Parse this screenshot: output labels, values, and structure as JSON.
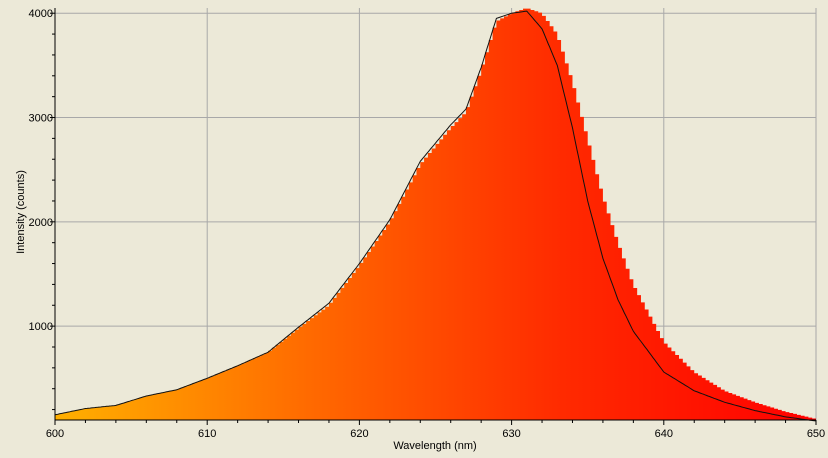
{
  "chart_data": {
    "type": "area",
    "xlabel": "Wavelength (nm)",
    "ylabel": "Intensity (counts)",
    "xlim": [
      600,
      650
    ],
    "ylim": [
      100,
      4050
    ],
    "x_ticks": [
      600,
      610,
      620,
      630,
      640,
      650
    ],
    "y_ticks": [
      1000,
      2000,
      3000,
      4000
    ],
    "grid": true,
    "fill_gradient": [
      "#ffb000",
      "#ff6a00",
      "#ff2a00",
      "#ff0000"
    ],
    "bar_series": {
      "x": [
        600,
        602,
        604,
        606,
        608,
        610,
        612,
        614,
        616,
        618,
        620,
        622,
        624,
        626,
        627,
        628,
        629,
        630,
        631,
        632,
        633,
        634,
        635,
        636,
        637,
        638,
        640,
        642,
        644,
        646,
        648,
        650
      ],
      "y": [
        150,
        210,
        240,
        330,
        390,
        500,
        620,
        750,
        980,
        1200,
        1580,
        2000,
        2550,
        2900,
        3050,
        3450,
        3920,
        4000,
        4050,
        4000,
        3800,
        3350,
        2800,
        2250,
        1800,
        1400,
        850,
        560,
        380,
        270,
        180,
        110
      ]
    },
    "line_series": {
      "x": [
        600,
        602,
        604,
        606,
        608,
        610,
        612,
        614,
        616,
        618,
        620,
        622,
        624,
        626,
        627,
        628,
        629,
        630,
        631,
        632,
        633,
        634,
        635,
        636,
        637,
        638,
        640,
        642,
        644,
        646,
        648,
        650
      ],
      "y": [
        150,
        210,
        240,
        330,
        390,
        500,
        620,
        750,
        990,
        1220,
        1600,
        2020,
        2580,
        2930,
        3080,
        3480,
        3950,
        4000,
        4020,
        3850,
        3500,
        2900,
        2200,
        1650,
        1250,
        950,
        560,
        380,
        270,
        190,
        130,
        90
      ]
    }
  }
}
